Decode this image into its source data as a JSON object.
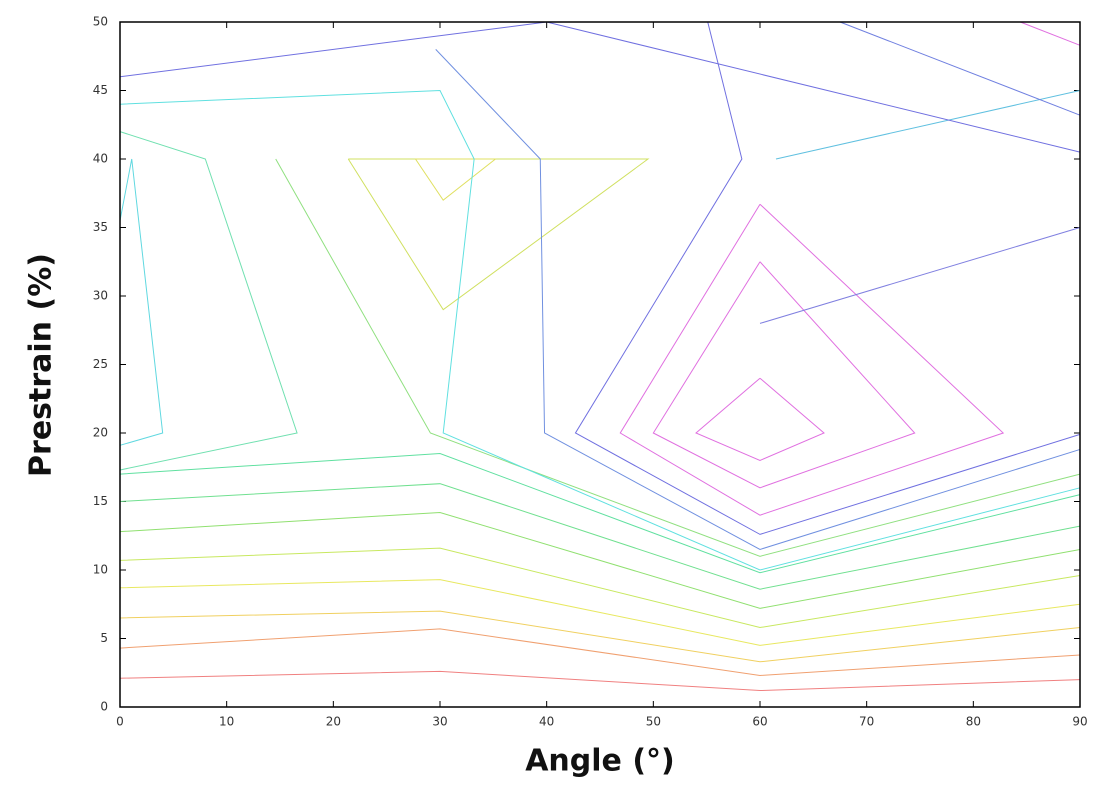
{
  "chart_data": {
    "type": "contour",
    "x_label": "Angle (°)",
    "y_label": "Prestrain (%)",
    "xlim": [
      0,
      90
    ],
    "ylim": [
      0,
      50
    ],
    "xticks": [
      0,
      10,
      20,
      30,
      40,
      50,
      60,
      70,
      80,
      90
    ],
    "yticks": [
      0,
      5,
      10,
      15,
      20,
      25,
      30,
      35,
      40,
      45,
      50
    ],
    "series": [
      {
        "color": "#f08080",
        "x": [
          0,
          30,
          60,
          90
        ],
        "values": [
          2.1,
          2.6,
          1.2,
          2.0
        ]
      },
      {
        "color": "#f0a070",
        "x": [
          0,
          30,
          60,
          90
        ],
        "values": [
          4.3,
          5.7,
          2.3,
          3.8
        ]
      },
      {
        "color": "#f0d060",
        "x": [
          0,
          30,
          60,
          90
        ],
        "values": [
          6.5,
          7.0,
          3.3,
          5.8
        ]
      },
      {
        "color": "#e8e860",
        "x": [
          0,
          30,
          60,
          90
        ],
        "values": [
          8.7,
          9.3,
          4.5,
          7.5
        ]
      },
      {
        "color": "#c8e860",
        "x": [
          0,
          30,
          60,
          90
        ],
        "values": [
          10.7,
          11.6,
          5.8,
          9.6
        ]
      },
      {
        "color": "#90e070",
        "x": [
          0,
          30,
          60,
          90
        ],
        "values": [
          12.8,
          14.2,
          7.2,
          11.5
        ]
      },
      {
        "color": "#70e090",
        "x": [
          0,
          30,
          60,
          90
        ],
        "values": [
          15.0,
          16.3,
          8.6,
          13.2
        ]
      },
      {
        "color": "#60e0a0",
        "x": [
          0,
          30,
          60,
          90
        ],
        "values": [
          17.0,
          18.5,
          9.8,
          15.5
        ]
      },
      {
        "color": "#60d8e0",
        "x": [
          0,
          1.1,
          4.0,
          0
        ],
        "values": [
          35.5,
          40.0,
          20.0,
          19.1
        ]
      },
      {
        "color": "#70e0b0",
        "x": [
          0,
          8.0,
          16.6,
          0
        ],
        "values": [
          42.0,
          40.0,
          20.0,
          17.3
        ]
      },
      {
        "color": "#90e080",
        "x": [
          14.6,
          29.1,
          60,
          90
        ],
        "values": [
          40.0,
          20.0,
          11.0,
          17.0
        ]
      },
      {
        "color": "#d0e060",
        "x": [
          21.4,
          30.3,
          49.5,
          21.4
        ],
        "values": [
          40.0,
          29.0,
          40.0,
          40.0
        ]
      },
      {
        "color": "#e0e060",
        "x": [
          27.7,
          30.3,
          35.2,
          27.7
        ],
        "values": [
          40.0,
          37.0,
          40.0,
          40.0
        ]
      },
      {
        "color": "#60e0e0",
        "x": [
          0,
          30,
          33.2,
          30.3,
          60,
          90
        ],
        "values": [
          44.0,
          45.0,
          40.0,
          20.0,
          10.0,
          16.0
        ]
      },
      {
        "color": "#7090e0",
        "x": [
          29.6,
          39.4,
          39.8,
          60,
          90
        ],
        "values": [
          48.0,
          40.0,
          20.0,
          11.5,
          18.8
        ]
      },
      {
        "color": "#7070e0",
        "x": [
          55.1,
          58.3,
          42.7,
          60,
          90
        ],
        "values": [
          50.0,
          40.0,
          20.0,
          12.6,
          19.9
        ]
      },
      {
        "color": "#e070e0",
        "x": [
          60,
          82.8,
          60,
          46.9,
          60
        ],
        "values": [
          36.7,
          20.0,
          14.0,
          20.0,
          36.7
        ]
      },
      {
        "color": "#e070e0",
        "x": [
          60,
          74.5,
          60,
          50.0,
          60
        ],
        "values": [
          32.5,
          20.0,
          16.0,
          20.0,
          32.5
        ]
      },
      {
        "color": "#e070e0",
        "x": [
          60,
          66.0,
          60,
          54.0,
          60
        ],
        "values": [
          24.0,
          20.0,
          18.0,
          20.0,
          24.0
        ]
      },
      {
        "color": "#60c0e0",
        "x": [
          61.5,
          90
        ],
        "values": [
          40.0,
          45.0
        ]
      },
      {
        "color": "#7080e0",
        "x": [
          67.5,
          90
        ],
        "values": [
          50.0,
          43.2
        ]
      },
      {
        "color": "#8080e0",
        "x": [
          60,
          90
        ],
        "values": [
          28.0,
          35.0
        ]
      },
      {
        "color": "#e070e0",
        "x": [
          84.4,
          90
        ],
        "values": [
          50.0,
          48.3
        ]
      },
      {
        "color": "#7070e0",
        "x": [
          0,
          40,
          90
        ],
        "values": [
          46.0,
          50.0,
          40.5
        ]
      }
    ]
  }
}
